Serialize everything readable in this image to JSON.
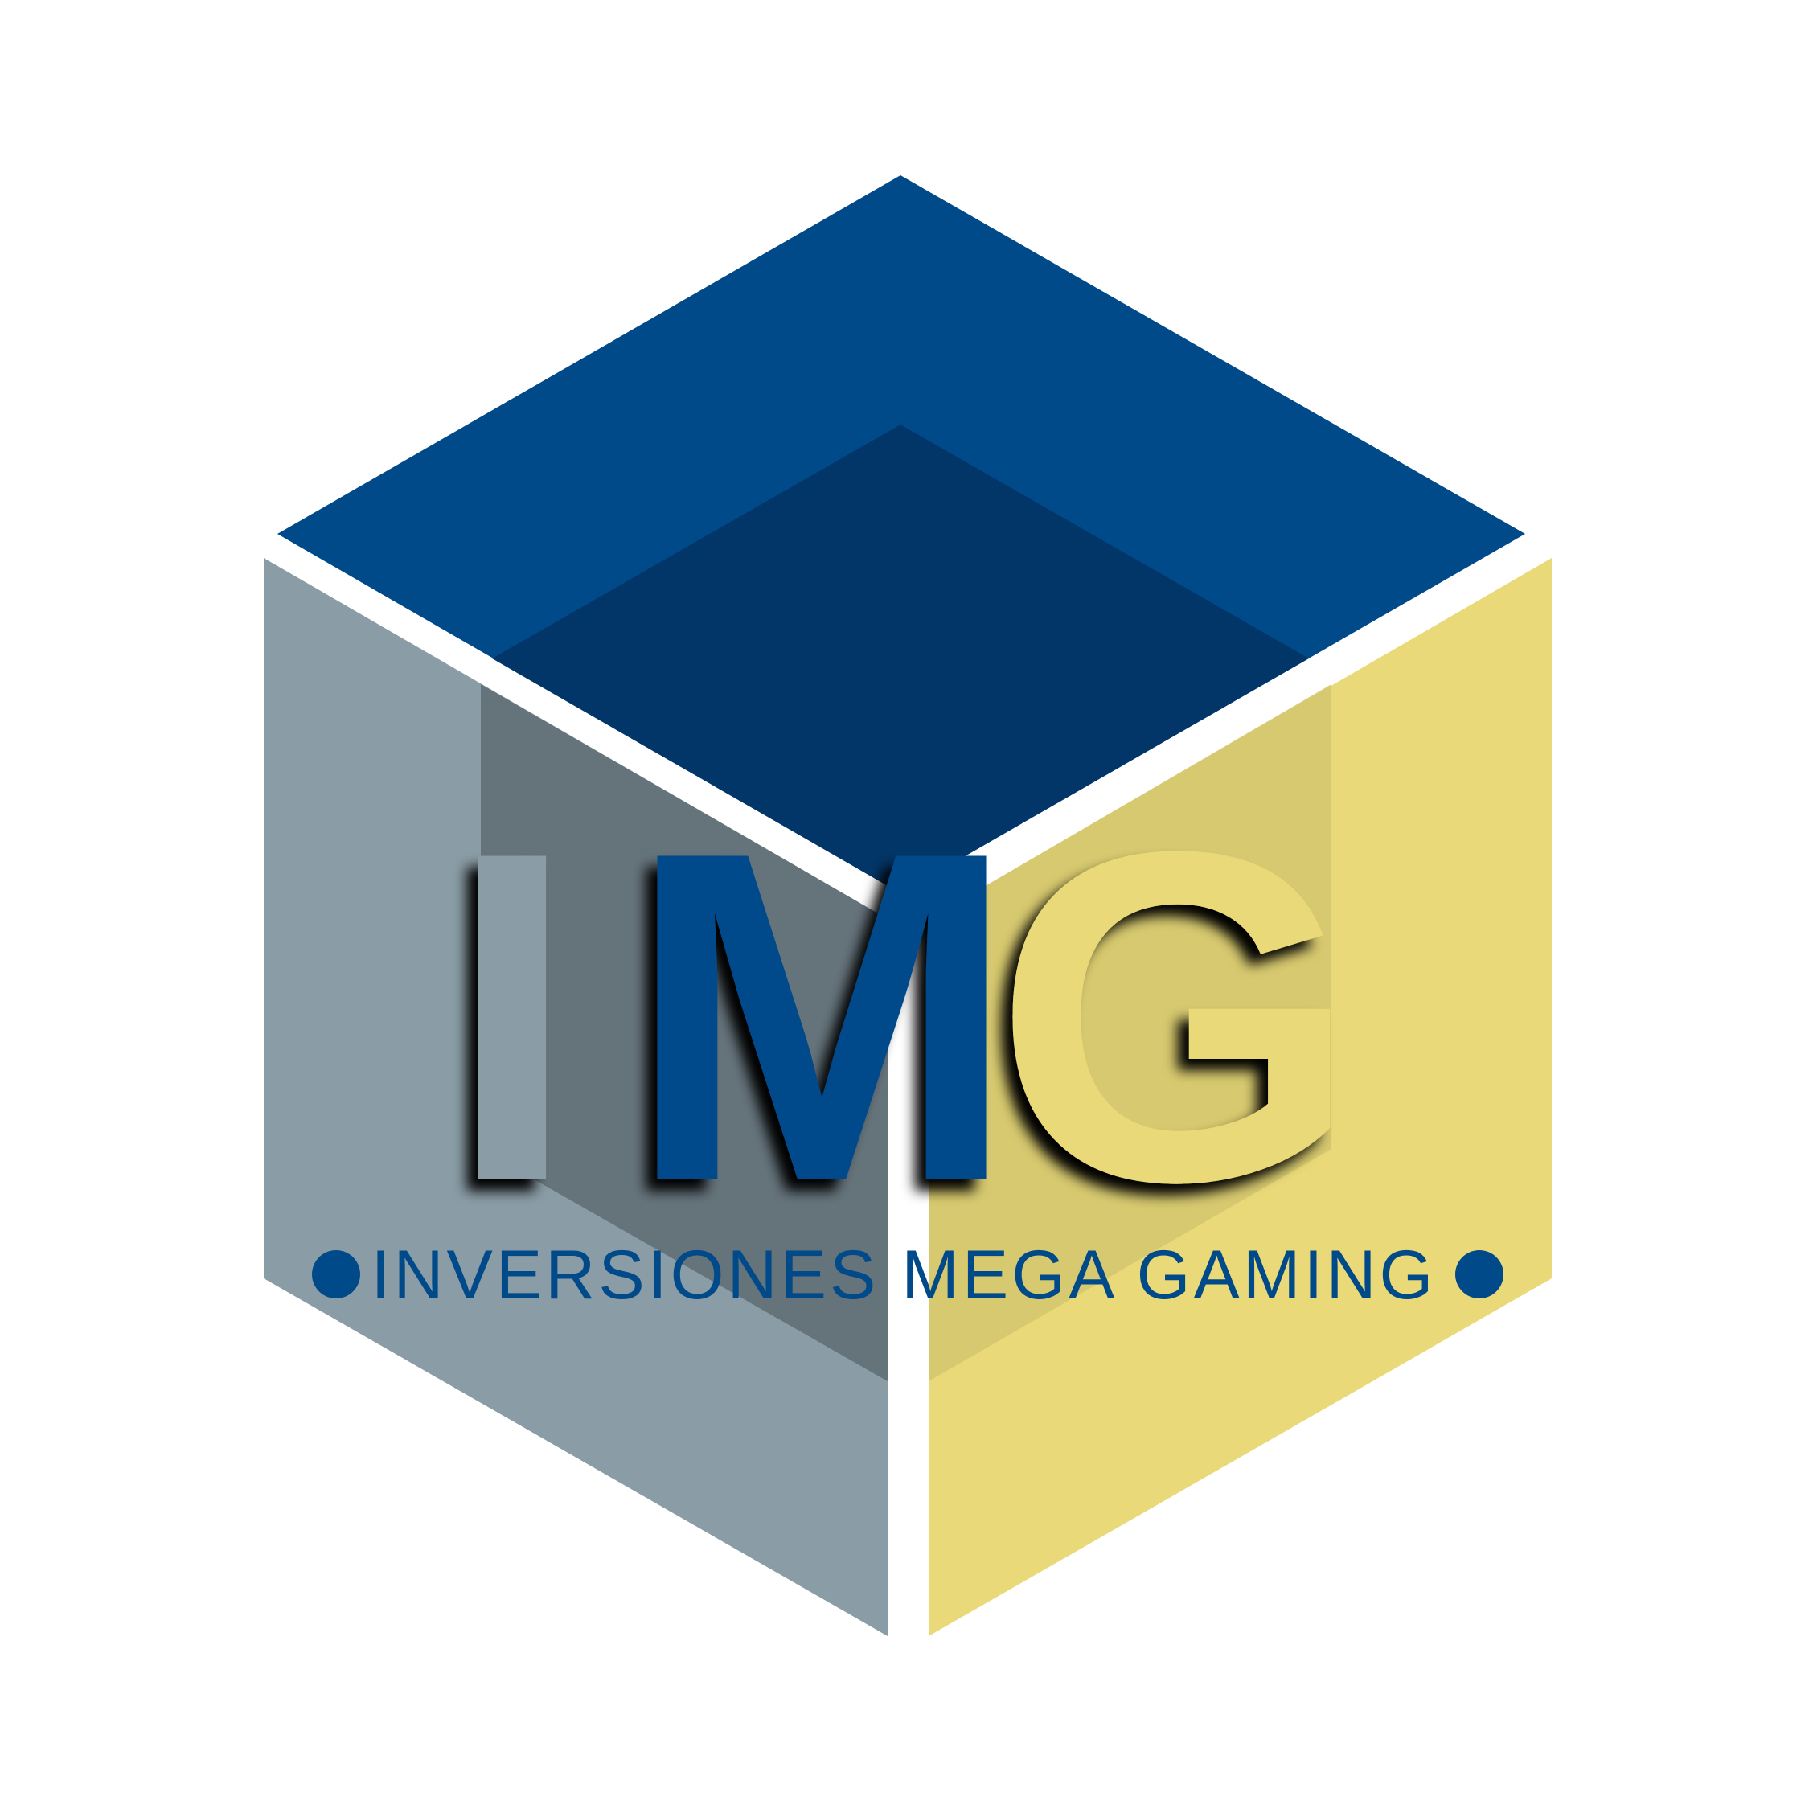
{
  "logo": {
    "monogram": {
      "letters": [
        "I",
        "M",
        "G"
      ]
    },
    "tagline": "INVERSIONES MEGA GAMING",
    "bullet_icon": "circle-bullet-icon"
  },
  "colors": {
    "background": "#ffffff",
    "cube_top": "#014A8A",
    "cube_top_inner": "#023668",
    "cube_left": "#8A9CA5",
    "cube_left_inner": "#5E6C73",
    "cube_right": "#E9D978",
    "cube_right_inner": "#D5C76E",
    "letter_i": "#8A9CA5",
    "letter_m": "#014A8A",
    "letter_g": "#E9D978",
    "tagline": "#014A8A",
    "shadow": "#000000"
  }
}
